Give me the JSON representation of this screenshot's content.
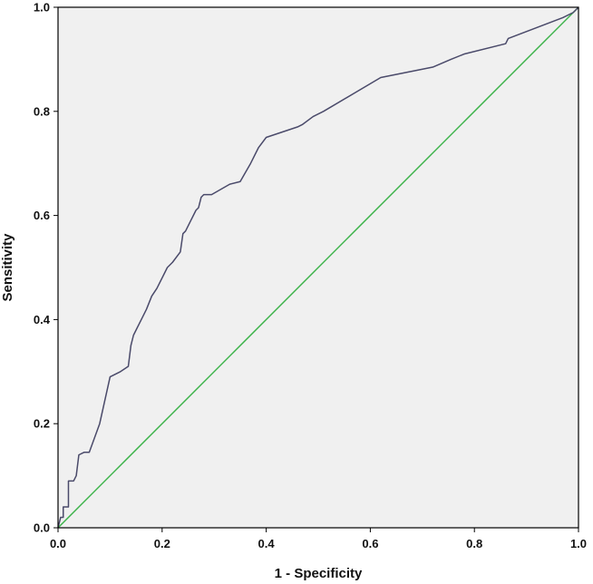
{
  "chart_data": {
    "type": "line",
    "title": "",
    "xlabel": "1 - Specificity",
    "ylabel": "Sensitivity",
    "xlim": [
      0,
      1
    ],
    "ylim": [
      0,
      1
    ],
    "xticks": [
      "0.0",
      "0.2",
      "0.4",
      "0.6",
      "0.8",
      "1.0"
    ],
    "yticks": [
      "0.0",
      "0.2",
      "0.4",
      "0.6",
      "0.8",
      "1.0"
    ],
    "grid": false,
    "background_color": "#f0f0f0",
    "series": [
      {
        "color": "#4a4a6a",
        "x": [
          0.0,
          0.005,
          0.01,
          0.01,
          0.02,
          0.02,
          0.03,
          0.035,
          0.04,
          0.05,
          0.06,
          0.08,
          0.1,
          0.12,
          0.135,
          0.14,
          0.145,
          0.15,
          0.16,
          0.17,
          0.18,
          0.19,
          0.21,
          0.22,
          0.235,
          0.24,
          0.245,
          0.255,
          0.265,
          0.27,
          0.275,
          0.28,
          0.295,
          0.33,
          0.35,
          0.37,
          0.385,
          0.4,
          0.46,
          0.47,
          0.49,
          0.51,
          0.62,
          0.72,
          0.755,
          0.78,
          0.86,
          0.865,
          0.97,
          0.99,
          1.0
        ],
        "y": [
          0.0,
          0.02,
          0.02,
          0.04,
          0.04,
          0.09,
          0.09,
          0.1,
          0.14,
          0.145,
          0.145,
          0.2,
          0.29,
          0.3,
          0.31,
          0.35,
          0.37,
          0.38,
          0.4,
          0.42,
          0.445,
          0.46,
          0.5,
          0.51,
          0.53,
          0.565,
          0.57,
          0.59,
          0.61,
          0.615,
          0.635,
          0.64,
          0.64,
          0.66,
          0.665,
          0.7,
          0.73,
          0.75,
          0.77,
          0.775,
          0.79,
          0.8,
          0.865,
          0.885,
          0.9,
          0.91,
          0.93,
          0.94,
          0.98,
          0.99,
          1.0
        ]
      },
      {
        "color": "#3cb34a",
        "x": [
          0.0,
          1.0
        ],
        "y": [
          0.0,
          1.0
        ]
      }
    ]
  }
}
